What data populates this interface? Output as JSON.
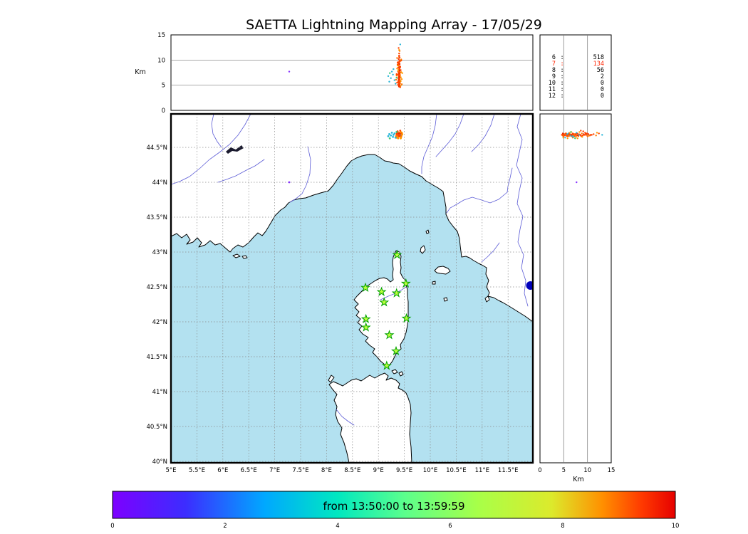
{
  "title": "SAETTA Lightning Mapping Array - 17/05/29",
  "colors": {
    "sea": "#b3e1f0",
    "land": "#ffffff",
    "coast": "#000000",
    "river": "#5c5cd6",
    "grid": "#8a8a8a",
    "lake": "#1a1a2e",
    "station-fill": "#baff3d",
    "station-stroke": "#00a000",
    "highlight": "#ff2400"
  },
  "alt_panel": {
    "ylabel": "Km",
    "yticks": [
      {
        "label": "0",
        "value": 0
      },
      {
        "label": "5",
        "value": 5
      },
      {
        "label": "10",
        "value": 10
      },
      {
        "label": "15",
        "value": 15
      }
    ]
  },
  "stats_panel": {
    "rows": [
      {
        "level": "6",
        "count": "518",
        "highlight": false
      },
      {
        "level": "7",
        "count": "134",
        "highlight": true
      },
      {
        "level": "8",
        "count": "56",
        "highlight": false
      },
      {
        "level": "9",
        "count": "2",
        "highlight": false
      },
      {
        "level": "10",
        "count": "0",
        "highlight": false
      },
      {
        "level": "11",
        "count": "0",
        "highlight": false
      },
      {
        "level": "12",
        "count": "0",
        "highlight": false
      }
    ]
  },
  "map_panel": {
    "lat_ticks": [
      {
        "label": "44.5°N",
        "value": 44.5
      },
      {
        "label": "44°N",
        "value": 44.0
      },
      {
        "label": "43.5°N",
        "value": 43.5
      },
      {
        "label": "43°N",
        "value": 43.0
      },
      {
        "label": "42.5°N",
        "value": 42.5
      },
      {
        "label": "42°N",
        "value": 42.0
      },
      {
        "label": "41.5°N",
        "value": 41.5
      },
      {
        "label": "41°N",
        "value": 41.0
      },
      {
        "label": "40.5°N",
        "value": 40.5
      },
      {
        "label": "40°N",
        "value": 40.0
      }
    ],
    "lon_ticks": [
      {
        "label": "5°E",
        "value": 5.0
      },
      {
        "label": "5.5°E",
        "value": 5.5
      },
      {
        "label": "6°E",
        "value": 6.0
      },
      {
        "label": "6.5°E",
        "value": 6.5
      },
      {
        "label": "7°E",
        "value": 7.0
      },
      {
        "label": "7.5°E",
        "value": 7.5
      },
      {
        "label": "8°E",
        "value": 8.0
      },
      {
        "label": "8.5°E",
        "value": 8.5
      },
      {
        "label": "9°E",
        "value": 9.0
      },
      {
        "label": "9.5°E",
        "value": 9.5
      },
      {
        "label": "10°E",
        "value": 10.0
      },
      {
        "label": "10.5°E",
        "value": 10.5
      },
      {
        "label": "11°E",
        "value": 11.0
      },
      {
        "label": "11.5°E",
        "value": 11.5
      }
    ]
  },
  "right_panel": {
    "xlabel": "Km",
    "xticks": [
      {
        "label": "0",
        "value": 0
      },
      {
        "label": "5",
        "value": 5
      },
      {
        "label": "10",
        "value": 10
      },
      {
        "label": "15",
        "value": 15
      }
    ]
  },
  "colorbar": {
    "label": "from 13:50:00 to 13:59:59",
    "ticks": [
      {
        "label": "0",
        "value": 0
      },
      {
        "label": "2",
        "value": 2
      },
      {
        "label": "4",
        "value": 4
      },
      {
        "label": "6",
        "value": 6
      },
      {
        "label": "8",
        "value": 8
      },
      {
        "label": "10",
        "value": 10
      }
    ]
  },
  "chart_data": {
    "type": "scatter",
    "time_window": {
      "start": "13:50:00",
      "end": "13:59:59"
    },
    "altitude_axis_km": {
      "min": 0,
      "max": 15,
      "gridlines": [
        5,
        10
      ]
    },
    "map_extent": {
      "lon_min": 5.0,
      "lon_max": 11.98,
      "lat_min": 39.98,
      "lat_max": 44.98
    },
    "source_count_by_stations": {
      "6": 518,
      "7": 134,
      "8": 56,
      "9": 2,
      "10": 0,
      "11": 0,
      "12": 0
    },
    "palette": [
      "#ff4500",
      "#ff7a00",
      "#e82800",
      "#ff9a00",
      "#29b6d8",
      "#3ec97a",
      "#8833ff"
    ],
    "sources": [
      [
        9.4,
        44.68,
        10.8,
        0
      ],
      [
        9.41,
        44.67,
        10.5,
        0
      ],
      [
        9.39,
        44.69,
        10.2,
        2
      ],
      [
        9.4,
        44.66,
        10.0,
        0
      ],
      [
        9.42,
        44.68,
        9.8,
        1
      ],
      [
        9.38,
        44.7,
        9.6,
        0
      ],
      [
        9.4,
        44.68,
        9.4,
        0
      ],
      [
        9.41,
        44.69,
        9.2,
        2
      ],
      [
        9.39,
        44.67,
        9.0,
        0
      ],
      [
        9.4,
        44.7,
        8.8,
        1
      ],
      [
        9.42,
        44.66,
        8.7,
        0
      ],
      [
        9.38,
        44.68,
        8.5,
        0
      ],
      [
        9.41,
        44.68,
        8.4,
        2
      ],
      [
        9.4,
        44.69,
        8.2,
        0
      ],
      [
        9.39,
        44.66,
        8.1,
        1
      ],
      [
        9.43,
        44.68,
        8.0,
        0
      ],
      [
        9.4,
        44.67,
        7.9,
        0
      ],
      [
        9.41,
        44.7,
        7.8,
        2
      ],
      [
        9.38,
        44.67,
        7.7,
        0
      ],
      [
        9.4,
        44.68,
        7.6,
        1
      ],
      [
        9.42,
        44.69,
        7.5,
        0
      ],
      [
        9.39,
        44.68,
        7.4,
        0
      ],
      [
        9.41,
        44.66,
        7.3,
        0
      ],
      [
        9.4,
        44.69,
        7.2,
        2
      ],
      [
        9.38,
        44.68,
        7.1,
        0
      ],
      [
        9.42,
        44.67,
        7.0,
        1
      ],
      [
        9.4,
        44.7,
        6.9,
        0
      ],
      [
        9.39,
        44.67,
        6.8,
        0
      ],
      [
        9.41,
        44.68,
        6.7,
        2
      ],
      [
        9.4,
        44.66,
        6.6,
        0
      ],
      [
        9.43,
        44.69,
        6.5,
        1
      ],
      [
        9.38,
        44.68,
        6.4,
        0
      ],
      [
        9.4,
        44.67,
        6.3,
        0
      ],
      [
        9.41,
        44.69,
        6.2,
        0
      ],
      [
        9.39,
        44.7,
        6.1,
        2
      ],
      [
        9.4,
        44.68,
        6.0,
        0
      ],
      [
        9.42,
        44.67,
        5.9,
        1
      ],
      [
        9.38,
        44.66,
        5.8,
        0
      ],
      [
        9.41,
        44.68,
        5.7,
        0
      ],
      [
        9.4,
        44.69,
        5.6,
        2
      ],
      [
        9.39,
        44.68,
        5.5,
        0
      ],
      [
        9.42,
        44.7,
        5.4,
        1
      ],
      [
        9.4,
        44.67,
        5.3,
        0
      ],
      [
        9.41,
        44.68,
        5.2,
        0
      ],
      [
        9.38,
        44.69,
        5.1,
        0
      ],
      [
        9.4,
        44.68,
        5.0,
        2
      ],
      [
        9.39,
        44.66,
        4.9,
        0
      ],
      [
        9.41,
        44.67,
        4.8,
        1
      ],
      [
        9.4,
        44.68,
        4.7,
        0
      ],
      [
        9.42,
        44.68,
        4.6,
        0
      ],
      [
        9.36,
        44.72,
        8.3,
        3
      ],
      [
        9.44,
        44.65,
        7.6,
        3
      ],
      [
        9.35,
        44.64,
        6.9,
        1
      ],
      [
        9.45,
        44.71,
        6.2,
        3
      ],
      [
        9.37,
        44.73,
        9.1,
        0
      ],
      [
        9.43,
        44.63,
        5.8,
        3
      ],
      [
        9.36,
        44.67,
        10.4,
        1
      ],
      [
        9.44,
        44.7,
        9.9,
        0
      ],
      [
        9.37,
        44.65,
        8.9,
        3
      ],
      [
        9.45,
        44.68,
        5.2,
        1
      ],
      [
        9.35,
        44.69,
        7.2,
        0
      ],
      [
        9.43,
        44.72,
        6.6,
        3
      ],
      [
        9.36,
        44.7,
        5.5,
        0
      ],
      [
        9.44,
        44.66,
        10.1,
        1
      ],
      [
        9.38,
        44.63,
        7.9,
        3
      ],
      [
        9.42,
        44.74,
        8.6,
        0
      ],
      [
        9.34,
        44.66,
        6.1,
        1
      ],
      [
        9.46,
        44.69,
        7.4,
        3
      ],
      [
        9.37,
        44.71,
        9.5,
        0
      ],
      [
        9.43,
        44.64,
        4.9,
        3
      ],
      [
        9.4,
        44.69,
        11.3,
        0
      ],
      [
        9.41,
        44.67,
        11.8,
        1
      ],
      [
        9.39,
        44.7,
        12.4,
        0
      ],
      [
        9.42,
        44.68,
        13.1,
        4
      ],
      [
        9.4,
        44.71,
        12.0,
        3
      ],
      [
        9.24,
        44.67,
        6.4,
        4
      ],
      [
        9.21,
        44.69,
        5.7,
        4
      ],
      [
        9.28,
        44.65,
        7.1,
        4
      ],
      [
        9.31,
        44.7,
        6.0,
        4
      ],
      [
        9.26,
        44.71,
        7.7,
        4
      ],
      [
        9.33,
        44.64,
        5.3,
        4
      ],
      [
        9.19,
        44.66,
        6.8,
        4
      ],
      [
        9.29,
        44.68,
        8.2,
        4
      ],
      [
        9.35,
        44.72,
        6.5,
        5
      ],
      [
        9.22,
        44.63,
        7.4,
        5
      ],
      [
        7.28,
        44.0,
        7.7,
        6
      ],
      [
        9.4,
        44.68,
        10.6,
        0
      ],
      [
        9.41,
        44.68,
        9.7,
        0
      ],
      [
        9.39,
        44.68,
        9.3,
        0
      ],
      [
        9.4,
        44.67,
        8.6,
        0
      ],
      [
        9.41,
        44.67,
        8.0,
        2
      ],
      [
        9.4,
        44.69,
        7.5,
        0
      ],
      [
        9.39,
        44.69,
        7.0,
        0
      ],
      [
        9.4,
        44.68,
        6.6,
        2
      ],
      [
        9.41,
        44.69,
        6.1,
        0
      ],
      [
        9.4,
        44.66,
        5.7,
        0
      ],
      [
        9.39,
        44.67,
        5.2,
        0
      ],
      [
        9.4,
        44.7,
        4.8,
        2
      ],
      [
        9.41,
        44.68,
        4.7,
        0
      ],
      [
        9.4,
        44.68,
        10.9,
        0
      ]
    ],
    "stations": [
      [
        9.36,
        42.96
      ],
      [
        8.75,
        42.49
      ],
      [
        9.06,
        42.43
      ],
      [
        9.35,
        42.41
      ],
      [
        9.53,
        42.55
      ],
      [
        9.11,
        42.28
      ],
      [
        8.76,
        42.04
      ],
      [
        8.76,
        41.92
      ],
      [
        9.54,
        42.05
      ],
      [
        9.21,
        41.81
      ],
      [
        9.34,
        41.58
      ],
      [
        9.16,
        41.37
      ]
    ],
    "edge_marker": {
      "lon": 11.93,
      "lat": 42.52,
      "color": "#0000bb",
      "radius_px": 6
    },
    "colormap": [
      [
        0.0,
        "#7d00ff"
      ],
      [
        0.13,
        "#3c2dff"
      ],
      [
        0.27,
        "#00a8ff"
      ],
      [
        0.4,
        "#00e8c0"
      ],
      [
        0.52,
        "#5cff8c"
      ],
      [
        0.65,
        "#a8ff48"
      ],
      [
        0.78,
        "#dcea2c"
      ],
      [
        0.87,
        "#ff9000"
      ],
      [
        0.94,
        "#ff3a00"
      ],
      [
        1.0,
        "#e60000"
      ]
    ]
  }
}
